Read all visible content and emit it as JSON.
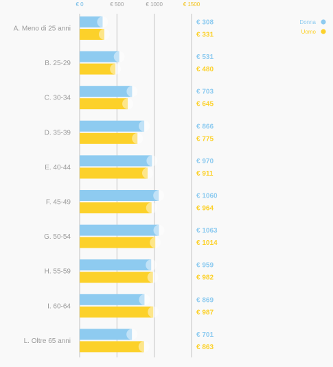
{
  "chart_data": {
    "type": "bar",
    "orientation": "horizontal",
    "categories": [
      "A. Meno di 25 anni",
      "B. 25-29",
      "C. 30-34",
      "D. 35-39",
      "E. 40-44",
      "F. 45-49",
      "G. 50-54",
      "H. 55-59",
      "I. 60-64",
      "L. Oltre 65 anni"
    ],
    "series": [
      {
        "name": "Donna",
        "color": "#8ecbf0",
        "values": [
          308,
          531,
          703,
          866,
          970,
          1060,
          1063,
          959,
          869,
          701
        ],
        "labels": [
          "€ 308",
          "€ 531",
          "€ 703",
          "€ 866",
          "€ 970",
          "€ 1060",
          "€ 1063",
          "€ 959",
          "€ 869",
          "€ 701"
        ]
      },
      {
        "name": "Uomo",
        "color": "#fcd12a",
        "values": [
          331,
          480,
          645,
          775,
          911,
          964,
          1014,
          982,
          987,
          863
        ],
        "labels": [
          "€ 331",
          "€ 480",
          "€ 645",
          "€ 775",
          "€ 911",
          "€ 964",
          "€ 1014",
          "€ 982",
          "€ 987",
          "€ 863"
        ]
      }
    ],
    "x_ticks": [
      {
        "value": 0,
        "label": "€ 0",
        "color": "#6bb8e6"
      },
      {
        "value": 500,
        "label": "€ 500",
        "color": "#a0a0a0"
      },
      {
        "value": 1000,
        "label": "€ 1000",
        "color": "#a0a0a0"
      },
      {
        "value": 1500,
        "label": "€ 1500",
        "color": "#f2c21b"
      }
    ],
    "xlim": [
      0,
      1500
    ],
    "legend_position": "top-right",
    "grid": true
  }
}
